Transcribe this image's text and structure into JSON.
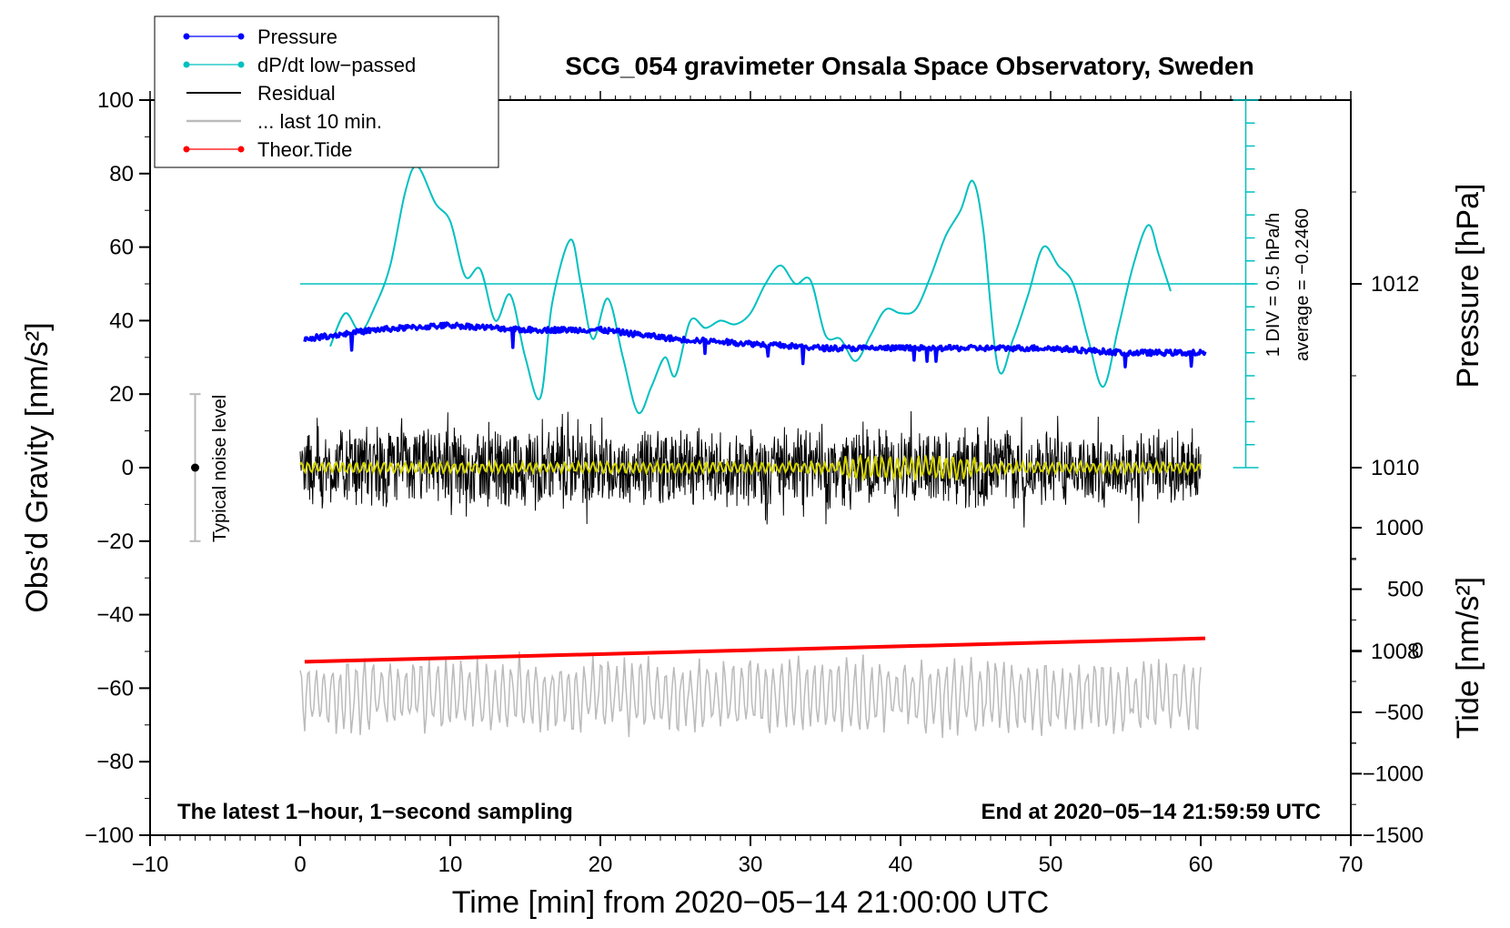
{
  "chart_data": {
    "type": "line",
    "title": "SCG_054 gravimeter Onsala Space Observatory, Sweden",
    "xlabel": "Time [min] from 2020−05−14 21:00:00 UTC",
    "ylabel": "Obs’d Gravity [nm/s²]",
    "y2label_pressure": "Pressure [hPa]",
    "y2label_tide": "Tide [nm/s²]",
    "xlim": [
      -10,
      70
    ],
    "ylim": [
      -100,
      100
    ],
    "x_ticks": [
      -10,
      0,
      10,
      20,
      30,
      40,
      50,
      60,
      70
    ],
    "x_tick_labels": [
      "−10",
      "0",
      "10",
      "20",
      "30",
      "40",
      "50",
      "60",
      "70"
    ],
    "y_ticks": [
      -100,
      -80,
      -60,
      -40,
      -20,
      0,
      20,
      40,
      60,
      80,
      100
    ],
    "y_tick_labels": [
      "−100",
      "−80",
      "−60",
      "−40",
      "−20",
      "0",
      "20",
      "40",
      "60",
      "80",
      "100"
    ],
    "pressure_axis": {
      "ticks": [
        1008,
        1010,
        1012
      ],
      "tick_labels": [
        "1008",
        "1010",
        "1012"
      ],
      "range": [
        1006,
        1014
      ]
    },
    "tide_axis": {
      "ticks": [
        -1500,
        -1000,
        -500,
        0,
        500,
        1000
      ],
      "tick_labels": [
        "−1500",
        "−1000",
        "−500",
        "0",
        "500",
        "1000"
      ],
      "range": [
        -1500,
        1000
      ]
    },
    "legend": {
      "position": "top-left",
      "entries": [
        {
          "label": "Pressure",
          "color": "#0000ff",
          "marker": true
        },
        {
          "label": "dP/dt low−passed",
          "color": "#00c0c0",
          "marker": true
        },
        {
          "label": "Residual",
          "color": "#000000",
          "marker": false
        },
        {
          "label": "... last 10 min.",
          "color": "#bbbbbb",
          "marker": false
        },
        {
          "label": "Theor.Tide",
          "color": "#ff0000",
          "marker": true
        }
      ]
    },
    "dpdt_scale": {
      "label_div": "1 DIV = 0.5 hPa/h",
      "label_avg": "average = −0.2460",
      "baseline_y": 50,
      "scale_top_y": 100,
      "scale_bottom_y": 0,
      "x": 63
    },
    "noise_bar": {
      "label": "Typical noise level",
      "x": -7,
      "y_center": 0,
      "y_low": -20,
      "y_high": 20
    },
    "annotation_left": "The latest 1−hour, 1−second sampling",
    "annotation_right": "End at 2020−05−14 21:59:59 UTC",
    "series": [
      {
        "name": "Pressure",
        "color": "#0000ff",
        "unit": "hPa",
        "x": [
          0.3,
          5,
          10,
          15,
          20,
          25,
          30,
          35,
          40,
          45,
          50,
          55,
          60.3
        ],
        "values": [
          1011.4,
          1011.5,
          1011.55,
          1011.5,
          1011.5,
          1011.4,
          1011.35,
          1011.3,
          1011.3,
          1011.3,
          1011.3,
          1011.25,
          1011.25
        ]
      },
      {
        "name": "dP/dt low−passed",
        "color": "#00c0c0",
        "unit": "nm/s² display units",
        "x": [
          2,
          3,
          4,
          5,
          6,
          7,
          7.8,
          9,
          10,
          11,
          12,
          13,
          14,
          15,
          16,
          16.8,
          18,
          18.7,
          19.5,
          20.5,
          21.5,
          22.5,
          23.4,
          24.3,
          25,
          26,
          27,
          28,
          29,
          30,
          31,
          32,
          33,
          34,
          35,
          36,
          37,
          38,
          39,
          40,
          41,
          42,
          43,
          44,
          44.8,
          45.5,
          46.5,
          47.5,
          48.5,
          49.5,
          50.5,
          51.5,
          52.5,
          53.5,
          54.5,
          55.5,
          56.5,
          57.2,
          58
        ],
        "values": [
          33,
          42,
          37,
          44,
          55,
          75,
          82,
          72,
          67,
          52,
          54,
          40,
          47,
          30,
          19,
          45,
          62,
          50,
          35,
          46,
          30,
          15,
          22,
          30,
          25,
          40,
          38,
          40,
          39,
          42,
          50,
          55,
          50,
          51,
          36,
          35,
          29,
          36,
          43,
          42,
          43,
          52,
          63,
          70,
          78,
          65,
          27,
          35,
          47,
          60,
          55,
          50,
          35,
          22,
          38,
          55,
          66,
          58,
          48
        ]
      },
      {
        "name": "Residual",
        "color": "#000000",
        "unit": "nm/s²",
        "x_range": [
          0,
          60
        ],
        "amplitude_range": [
          -17,
          17
        ],
        "mean": 0
      },
      {
        "name": "Residual smoothed",
        "color": "#d4d400",
        "unit": "nm/s²",
        "x_range": [
          0,
          60
        ],
        "amplitude_range": [
          -3,
          3
        ],
        "mean": 0
      },
      {
        "name": "... last 10 min.",
        "color": "#bbbbbb",
        "unit": "nm/s²",
        "x_range": [
          0,
          60
        ],
        "mean": -62,
        "amplitude_range": [
          -77,
          -45
        ]
      },
      {
        "name": "Theor.Tide",
        "color": "#ff0000",
        "unit": "nm/s² (tide axis)",
        "x": [
          0.3,
          60.3
        ],
        "values": [
          -90,
          100
        ]
      }
    ]
  }
}
